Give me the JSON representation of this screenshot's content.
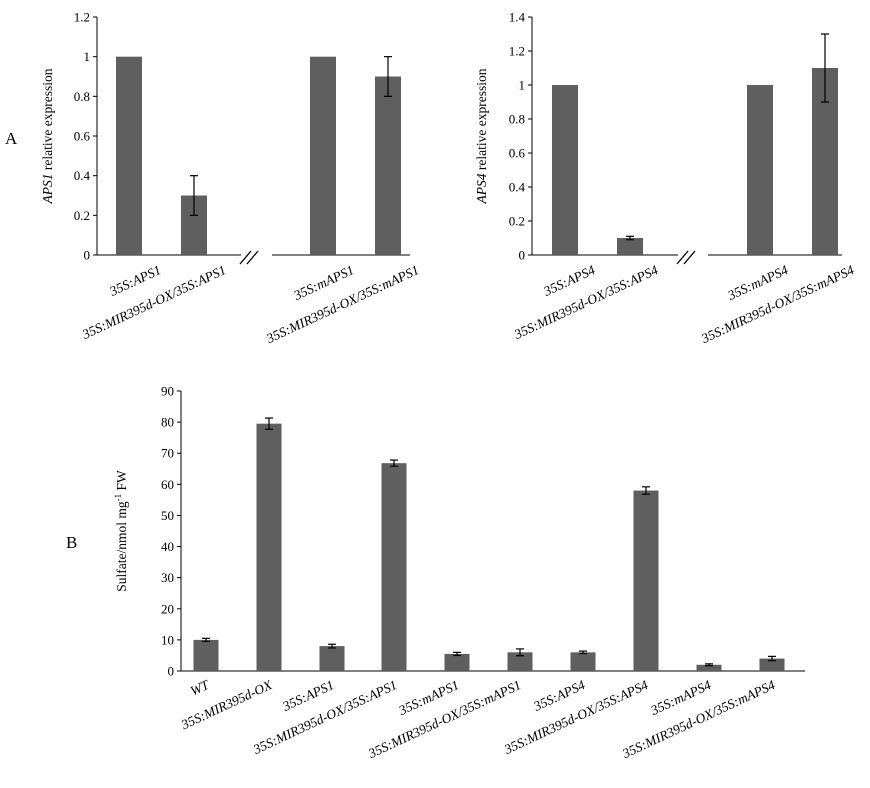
{
  "panels": {
    "a_label": "A",
    "b_label": "B"
  },
  "chart_data": [
    {
      "type": "bar",
      "panel": "A",
      "ylabel_italic": "APS1",
      "ylabel_rest": " relative expression",
      "ylim": [
        0,
        1.2
      ],
      "yticks": [
        "0",
        "0.2",
        "0.4",
        "0.6",
        "0.8",
        "1",
        "1.2"
      ],
      "break_mark": "//",
      "categories": [
        "35S:APS1",
        "35S:MIR395d-OX/35S:APS1",
        "35S:mAPS1",
        "35S:MIR395d-OX/35S:mAPS1"
      ],
      "values": [
        1,
        0.3,
        1,
        0.9
      ],
      "errors": [
        0,
        0.1,
        0,
        0.1
      ]
    },
    {
      "type": "bar",
      "panel": "A",
      "ylabel_italic": "APS4",
      "ylabel_rest": " relative expression",
      "ylim": [
        0,
        1.4
      ],
      "yticks": [
        "0",
        "0.2",
        "0.4",
        "0.6",
        "0.8",
        "1",
        "1.2",
        "1.4"
      ],
      "break_mark": "//",
      "categories": [
        "35S:APS4",
        "35S:MIR395d-OX/35S:APS4",
        "35S:mAPS4",
        "35S:MIR395d-OX/35S:mAPS4"
      ],
      "values": [
        1,
        0.1,
        1,
        1.1
      ],
      "errors": [
        0,
        0.01,
        0,
        0.2
      ]
    },
    {
      "type": "bar",
      "panel": "B",
      "ylabel_base": "Sulfate/nmol mg",
      "ylabel_sup": "-1",
      "ylabel_unit": " FW",
      "ylim": [
        0,
        90
      ],
      "yticks": [
        "0",
        "10",
        "20",
        "30",
        "40",
        "50",
        "60",
        "70",
        "80",
        "90"
      ],
      "categories": [
        "WT",
        "35S:MIR395d-OX",
        "35S:APS1",
        "35S:MIR395d-OX/35S:APS1",
        "35S:mAPS1",
        "35S:MIR395d-OX/35S:mAPS1",
        "35S:APS4",
        "35S:MIR395d-OX/35S:APS4",
        "35S:mAPS4",
        "35S:MIR395d-OX/35S:mAPS4"
      ],
      "values": [
        10,
        79.5,
        8,
        66.8,
        5.5,
        6,
        6,
        58,
        2,
        4
      ],
      "errors": [
        0.5,
        1.8,
        0.6,
        1.0,
        0.5,
        1.1,
        0.4,
        1.2,
        0.3,
        0.7
      ]
    }
  ]
}
